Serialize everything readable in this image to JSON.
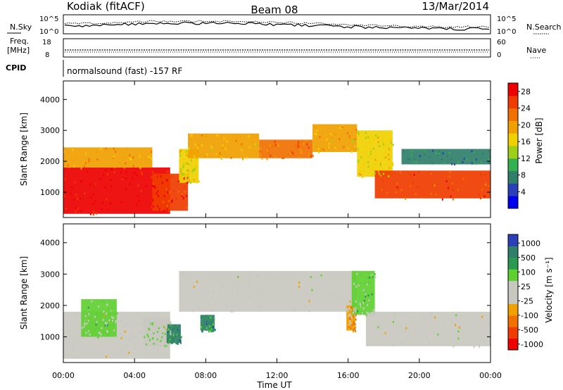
{
  "header": {
    "station": "Kodiak (fitACF)",
    "beam": "Beam 08",
    "date": "13/Mar/2014"
  },
  "strip_labels": {
    "nsky": "N.Sky",
    "nsearch": "N.Search",
    "freq_line1": "Freq.",
    "freq_line2": "[MHz]",
    "nave": "Nave",
    "cpid": "CPID",
    "cpid_value": "normalsound (fast) -157 RF"
  },
  "strip_ticks": {
    "noise_left": [
      "10^5",
      "10^0"
    ],
    "noise_right": [
      "10^5",
      "10^0"
    ],
    "freq_left": [
      "18",
      "8"
    ],
    "freq_right": [
      "60",
      "0"
    ]
  },
  "chart_data": [
    {
      "type": "heatmap",
      "title": "",
      "xlabel": "Time UT",
      "ylabel": "Slant Range [km]",
      "x_ticks": [
        "00:00",
        "04:00",
        "08:00",
        "12:00",
        "16:00",
        "20:00",
        "00:00"
      ],
      "xlim_hours": [
        0,
        24
      ],
      "y_ticks": [
        1000,
        2000,
        3000,
        4000
      ],
      "ylim": [
        180,
        4600
      ],
      "colorbar": {
        "label": "Power [dB]",
        "ticks": [
          4,
          8,
          12,
          16,
          20,
          24,
          28
        ],
        "range": [
          0,
          30
        ],
        "colors": [
          "#0000ee",
          "#2a3fb8",
          "#2f7f6a",
          "#35b050",
          "#9ed01a",
          "#f0d000",
          "#f0a000",
          "#f07000",
          "#f03c00",
          "#ee0000"
        ]
      },
      "regions": [
        {
          "t0": 0.0,
          "t1": 6.0,
          "r0": 300,
          "r1": 1800,
          "v": 28
        },
        {
          "t0": 0.0,
          "t1": 5.0,
          "r0": 1800,
          "r1": 2450,
          "v": 20
        },
        {
          "t0": 5.0,
          "t1": 7.0,
          "r0": 400,
          "r1": 1600,
          "v": 26
        },
        {
          "t0": 6.5,
          "t1": 7.6,
          "r0": 1300,
          "r1": 2400,
          "v": 16
        },
        {
          "t0": 7.0,
          "t1": 11.0,
          "r0": 2100,
          "r1": 2900,
          "v": 18
        },
        {
          "t0": 11.0,
          "t1": 14.0,
          "r0": 2100,
          "r1": 2700,
          "v": 22
        },
        {
          "t0": 14.0,
          "t1": 16.5,
          "r0": 2300,
          "r1": 3200,
          "v": 18
        },
        {
          "t0": 16.5,
          "t1": 18.5,
          "r0": 1500,
          "r1": 3000,
          "v": 16
        },
        {
          "t0": 17.5,
          "t1": 24.0,
          "r0": 800,
          "r1": 1700,
          "v": 24
        },
        {
          "t0": 19.0,
          "t1": 24.0,
          "r0": 1900,
          "r1": 2400,
          "v": 8
        }
      ]
    },
    {
      "type": "heatmap",
      "title": "",
      "xlabel": "Time UT",
      "ylabel": "Slant Range [km]",
      "x_ticks": [
        "00:00",
        "04:00",
        "08:00",
        "12:00",
        "16:00",
        "20:00",
        "00:00"
      ],
      "xlim_hours": [
        0,
        24
      ],
      "y_ticks": [
        1000,
        2000,
        3000,
        4000
      ],
      "ylim": [
        180,
        4600
      ],
      "colorbar": {
        "label": "Velocity [m s⁻¹]",
        "ticks": [
          1000,
          500,
          100,
          25,
          -25,
          -100,
          -500,
          -1000
        ],
        "range": [
          -1000,
          1000
        ],
        "colors": [
          "#ee0000",
          "#f03c00",
          "#f07000",
          "#f0a000",
          "#c8c8c0",
          "#c8c8c0",
          "#5ed030",
          "#2a9a50",
          "#2f7f6a",
          "#2a3fb8"
        ]
      },
      "regions": [
        {
          "t0": 0.0,
          "t1": 6.0,
          "r0": 300,
          "r1": 1800,
          "v": 0
        },
        {
          "t0": 1.0,
          "t1": 3.0,
          "r0": 1000,
          "r1": 2200,
          "v": 200
        },
        {
          "t0": 4.5,
          "t1": 6.0,
          "r0": 700,
          "r1": 1600,
          "v": 150
        },
        {
          "t0": 5.8,
          "t1": 6.6,
          "r0": 800,
          "r1": 1400,
          "v": 600
        },
        {
          "t0": 6.5,
          "t1": 16.5,
          "r0": 1800,
          "r1": 3100,
          "v": 0
        },
        {
          "t0": 7.7,
          "t1": 8.5,
          "r0": 1200,
          "r1": 1700,
          "v": 600
        },
        {
          "t0": 15.9,
          "t1": 16.4,
          "r0": 1200,
          "r1": 2000,
          "v": -300
        },
        {
          "t0": 16.2,
          "t1": 17.5,
          "r0": 1700,
          "r1": 3100,
          "v": 200
        },
        {
          "t0": 17.0,
          "t1": 24.0,
          "r0": 700,
          "r1": 1800,
          "v": 0
        }
      ]
    }
  ]
}
